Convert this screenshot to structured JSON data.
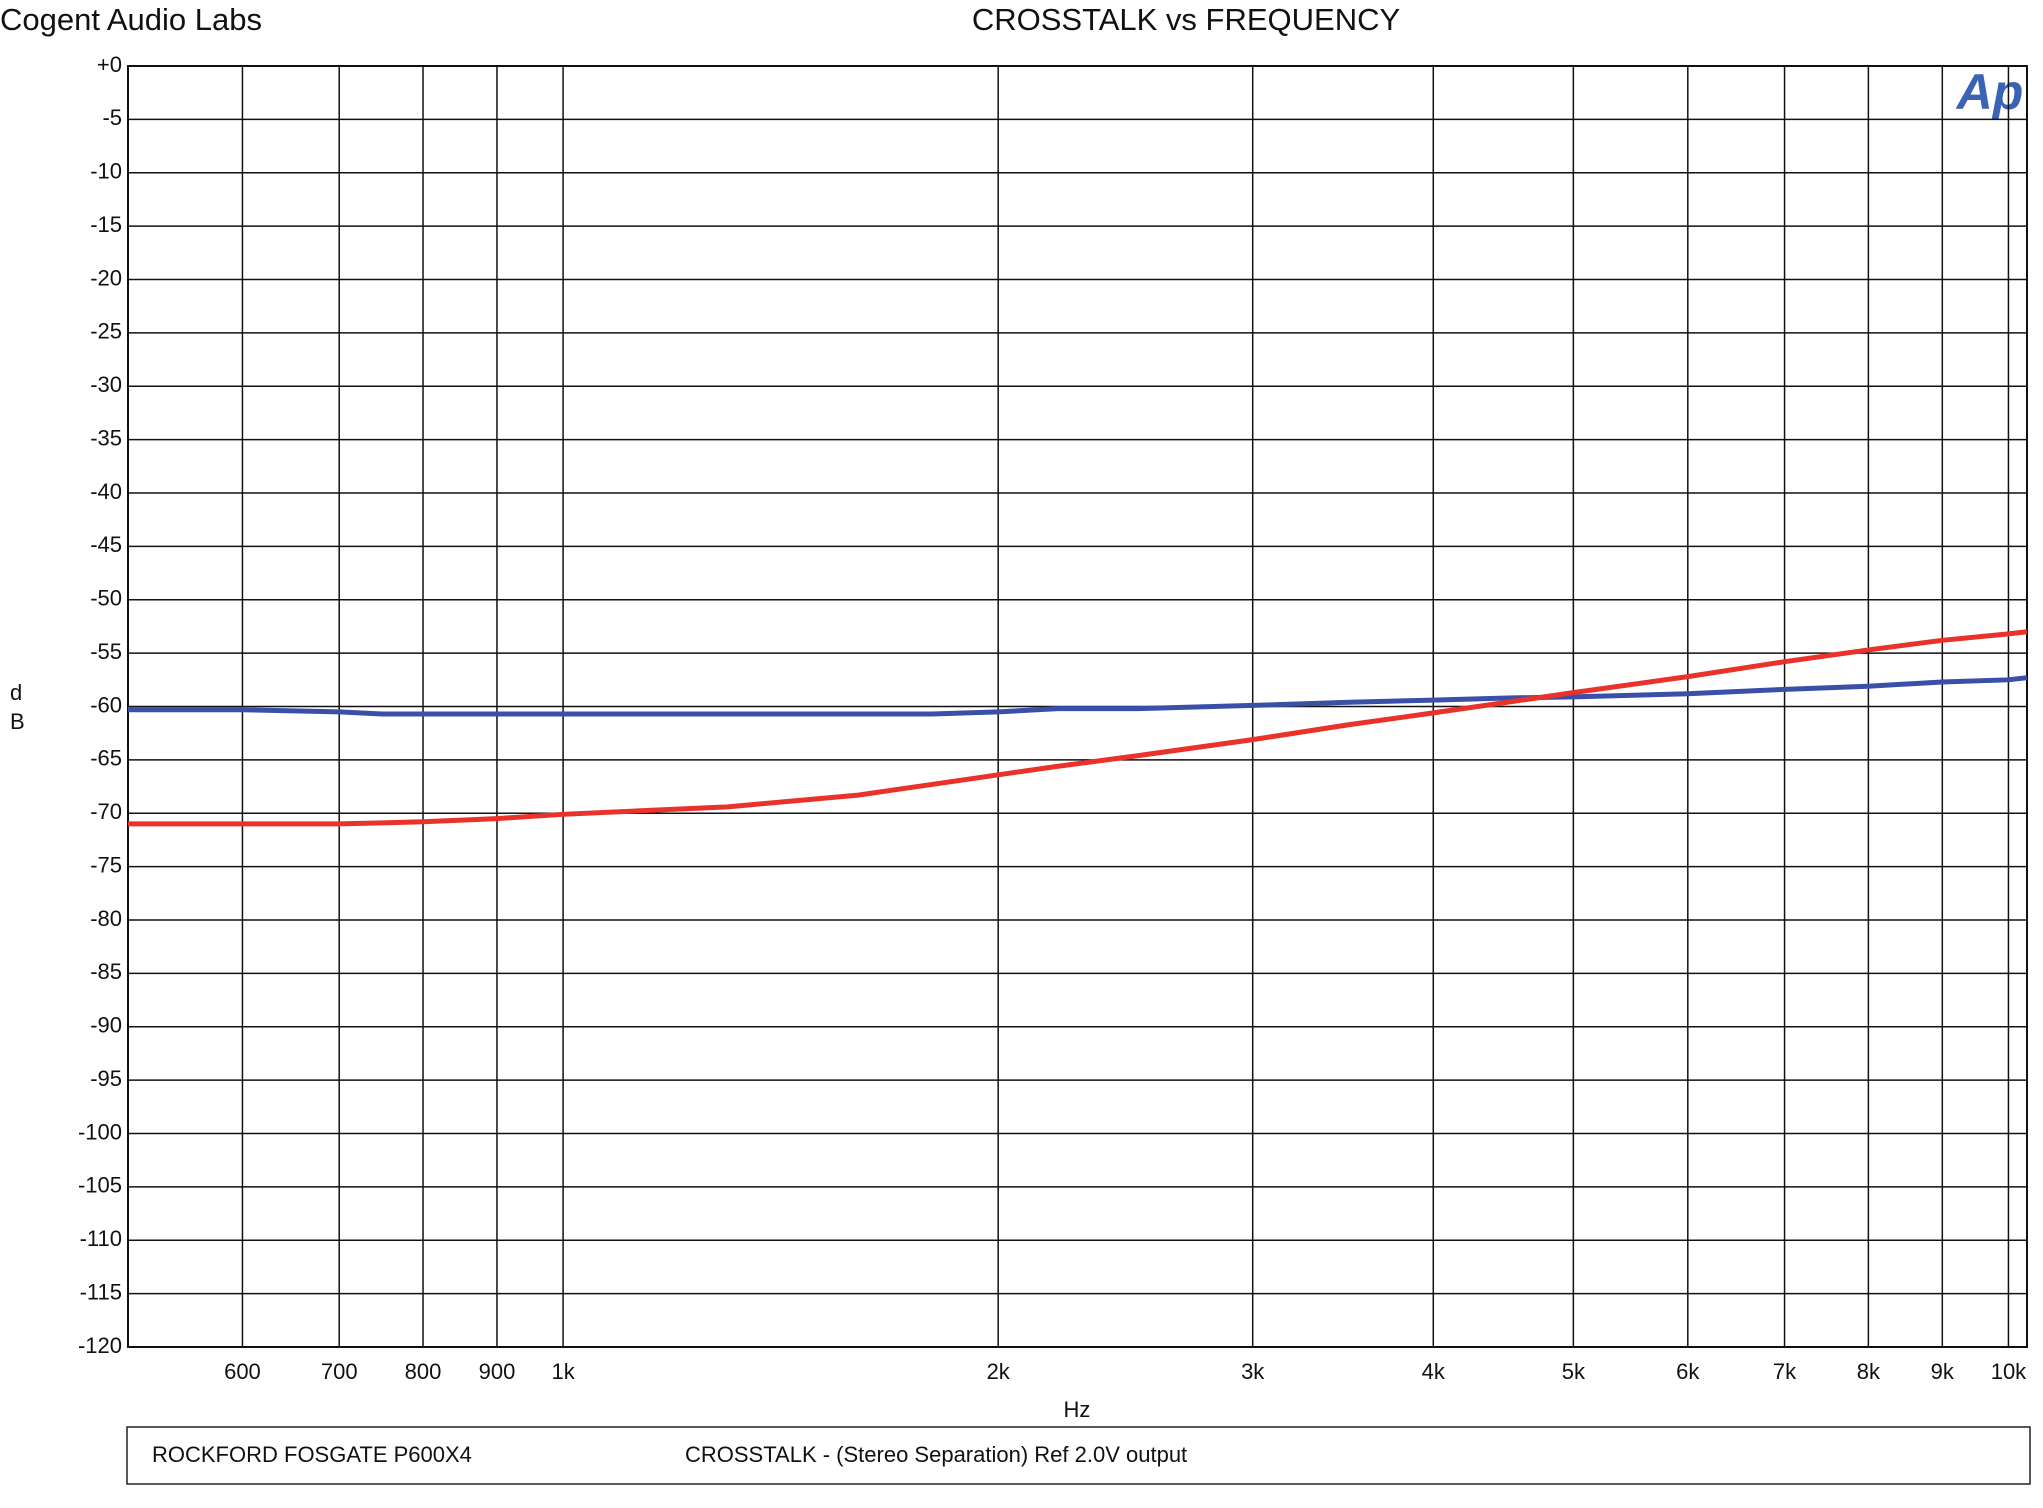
{
  "chart_data": {
    "type": "line",
    "header": "Cogent Audio Labs",
    "title": "CROSSTALK vs FREQUENCY",
    "ylabel": "dB",
    "xlabel": "Hz",
    "logo": "Ap",
    "footer": [
      "ROCKFORD FOSGATE P600X4",
      "CROSSTALK  -  (Stereo Separation)  Ref 2.0V output"
    ],
    "xscale": "log",
    "grid": true,
    "xlim": [
      500,
      10300
    ],
    "ylim": [
      -120,
      0
    ],
    "xticks": [
      600,
      700,
      800,
      900,
      {
        "value": 1000,
        "label": "1k"
      },
      {
        "value": 2000,
        "label": "2k"
      },
      {
        "value": 3000,
        "label": "3k"
      },
      {
        "value": 4000,
        "label": "4k"
      },
      {
        "value": 5000,
        "label": "5k"
      },
      {
        "value": 6000,
        "label": "6k"
      },
      {
        "value": 7000,
        "label": "7k"
      },
      {
        "value": 8000,
        "label": "8k"
      },
      {
        "value": 9000,
        "label": "9k"
      },
      {
        "value": 10000,
        "label": "10k"
      }
    ],
    "yticks": [
      {
        "value": 0,
        "label": "+0"
      },
      -5,
      -10,
      -15,
      -20,
      -25,
      -30,
      -35,
      -40,
      -45,
      -50,
      -55,
      -60,
      -65,
      -70,
      -75,
      -80,
      -85,
      -90,
      -95,
      -100,
      -105,
      -110,
      -115,
      -120
    ],
    "x": [
      500,
      600,
      700,
      750,
      800,
      900,
      1000,
      1300,
      1600,
      1800,
      2000,
      2200,
      2500,
      3000,
      3500,
      4000,
      4500,
      5000,
      6000,
      7000,
      8000,
      9000,
      10000,
      10300
    ],
    "series": [
      {
        "color": "#3a4fa8",
        "values": [
          -60.3,
          -60.3,
          -60.5,
          -60.7,
          -60.7,
          -60.7,
          -60.7,
          -60.7,
          -60.7,
          -60.7,
          -60.5,
          -60.2,
          -60.2,
          -59.9,
          -59.6,
          -59.4,
          -59.2,
          -59.1,
          -58.8,
          -58.4,
          -58.1,
          -57.7,
          -57.5,
          -57.3
        ]
      },
      {
        "color": "#e8322a",
        "values": [
          -71,
          -71,
          -71,
          -70.9,
          -70.8,
          -70.5,
          -70.1,
          -69.4,
          -68.3,
          -67.3,
          -66.4,
          -65.6,
          -64.6,
          -63.1,
          -61.7,
          -60.6,
          -59.6,
          -58.7,
          -57.2,
          -55.8,
          -54.7,
          -53.8,
          -53.2,
          -53
        ]
      }
    ]
  }
}
